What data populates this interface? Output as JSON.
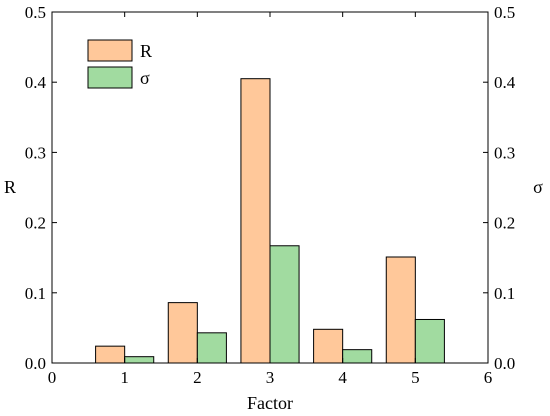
{
  "chart_data": {
    "type": "bar",
    "xlabel": "Factor",
    "ylabel_left": "R",
    "ylabel_right": "σ",
    "xlim": [
      0,
      6
    ],
    "ylim": [
      0,
      0.5
    ],
    "xticks": [
      0,
      1,
      2,
      3,
      4,
      5,
      6
    ],
    "yticks": [
      0.0,
      0.1,
      0.2,
      0.3,
      0.4,
      0.5
    ],
    "ytick_labels": [
      "0.0",
      "0.1",
      "0.2",
      "0.3",
      "0.4",
      "0.5"
    ],
    "categories": [
      1,
      2,
      3,
      4,
      5
    ],
    "series": [
      {
        "name": "R",
        "values": [
          0.024,
          0.086,
          0.405,
          0.048,
          0.151
        ],
        "color": "#ffc89a"
      },
      {
        "name": "σ",
        "values": [
          0.009,
          0.043,
          0.167,
          0.019,
          0.062
        ],
        "color": "#a1dba0"
      }
    ],
    "legend_position": "top-left",
    "grid": false
  }
}
